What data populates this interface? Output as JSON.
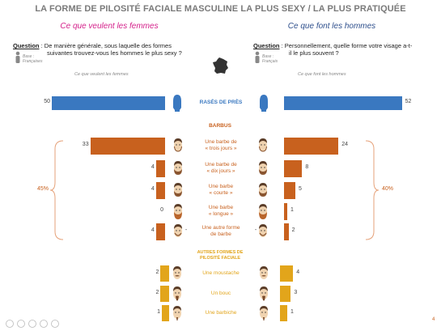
{
  "title": "LA FORME DE PILOSITÉ FACIALE MASCULINE LA PLUS SEXY / LA PLUS PRATIQUÉE",
  "left_heading": "Ce que veulent les femmes",
  "right_heading": "Ce que font les hommes",
  "left_question": {
    "label": "Question",
    "sep": " : ",
    "line1": "De manière générale, sous laquelle des formes",
    "line2": "suivantes trouvez-vous les hommes le plus sexy ?",
    "base_line1": "Base :",
    "base_line2": "Françaises"
  },
  "right_question": {
    "label": "Question",
    "sep": " : ",
    "line1": "Personnellement, quelle forme votre visage a-t-",
    "line2": "il le plus souvent ?",
    "base_line1": "Base :",
    "base_line2": "Français"
  },
  "left_axis_caption": "Ce que veulent les femmes",
  "right_axis_caption": "Ce que font les hommes",
  "sections": {
    "barbus": "BARBUS",
    "autres": [
      "AUTRES FORMES DE",
      "PILOSITÉ FACIALE"
    ]
  },
  "brace_left_pct": "45%",
  "brace_right_pct": "40%",
  "page_number": "4",
  "colors": {
    "blue": "#3a78c0",
    "orange": "#c8611e",
    "gold": "#e2a51b"
  },
  "chart_data": {
    "type": "bar",
    "orientation": "horizontal-butterfly",
    "categories": [
      [
        "RASÉS DE PRÈS"
      ],
      [
        "Une barbe de",
        "« trois jours »"
      ],
      [
        "Une barbe de",
        "« dix jours »"
      ],
      [
        "Une barbe",
        "« courte »"
      ],
      [
        "Une barbe",
        "« longue »"
      ],
      [
        "Une autre forme",
        "de barbe"
      ],
      [
        "Une moustache"
      ],
      [
        "Un bouc"
      ],
      [
        "Une barbiche"
      ]
    ],
    "groups": [
      "rases",
      "barbus",
      "barbus",
      "barbus",
      "barbus",
      "barbus",
      "autres",
      "autres",
      "autres"
    ],
    "series": [
      {
        "name": "Ce que veulent les femmes",
        "values": [
          50,
          33,
          4,
          4,
          0,
          4,
          2,
          2,
          1
        ]
      },
      {
        "name": "Ce que font les hommes",
        "values": [
          52,
          24,
          8,
          5,
          1,
          2,
          4,
          3,
          1
        ]
      }
    ],
    "other_shaver_marks": [
      "-",
      "-"
    ]
  }
}
